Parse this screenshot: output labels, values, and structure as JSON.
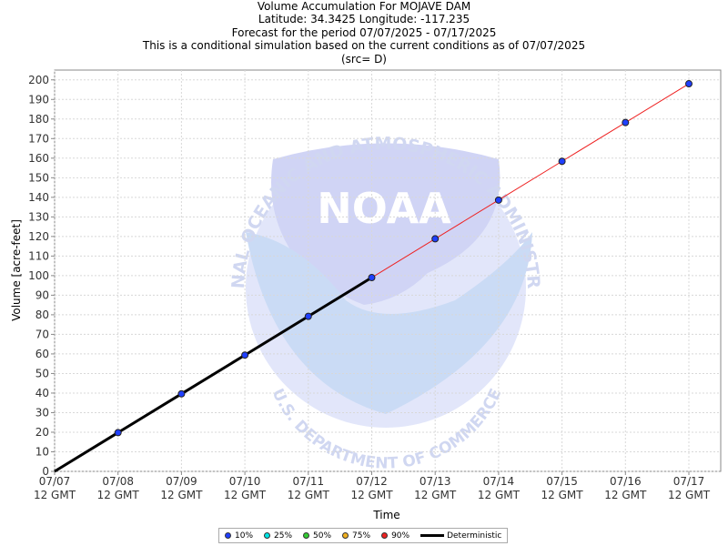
{
  "titles": {
    "line1": "Volume Accumulation For MOJAVE DAM",
    "line2": "Latitude: 34.3425 Longitude: -117.235",
    "line3": "Forecast for the period 07/07/2025 - 07/17/2025",
    "line4": "This is a conditional simulation based on the current conditions as of 07/07/2025",
    "line5": "(src= D)"
  },
  "legend": {
    "items": [
      {
        "label": "10%",
        "color": "#1f3fff"
      },
      {
        "label": "25%",
        "color": "#00e5e5"
      },
      {
        "label": "50%",
        "color": "#33cc33"
      },
      {
        "label": "75%",
        "color": "#f0b020"
      },
      {
        "label": "90%",
        "color": "#ee2222"
      }
    ],
    "deterministic_label": "Deterministic"
  },
  "watermark": {
    "logo_text": "NOAA",
    "ring_top": "NATIONAL OCEANIC AND ATMOSPHERIC ADMINISTRATION",
    "ring_bottom": "U.S. DEPARTMENT OF COMMERCE"
  },
  "chart_data": {
    "type": "line",
    "xlabel": "Time",
    "ylabel": "Volume [acre-feet]",
    "ylim": [
      0,
      205
    ],
    "yticks": [
      0,
      10,
      20,
      30,
      40,
      50,
      60,
      70,
      80,
      90,
      100,
      110,
      120,
      130,
      140,
      150,
      160,
      170,
      180,
      190,
      200
    ],
    "x_tick_labels": [
      [
        "07/07",
        "12 GMT"
      ],
      [
        "07/08",
        "12 GMT"
      ],
      [
        "07/09",
        "12 GMT"
      ],
      [
        "07/10",
        "12 GMT"
      ],
      [
        "07/11",
        "12 GMT"
      ],
      [
        "07/12",
        "12 GMT"
      ],
      [
        "07/13",
        "12 GMT"
      ],
      [
        "07/14",
        "12 GMT"
      ],
      [
        "07/15",
        "12 GMT"
      ],
      [
        "07/16",
        "12 GMT"
      ],
      [
        "07/17",
        "12 GMT"
      ]
    ],
    "grid": true,
    "series": [
      {
        "name": "Deterministic",
        "color": "#000000",
        "x": [
          0,
          1,
          2,
          3,
          4,
          5
        ],
        "values": [
          0,
          19.8,
          39.6,
          59.4,
          79.2,
          99
        ]
      },
      {
        "name": "10%",
        "color": "#1f3fff",
        "x": [
          1,
          2,
          3,
          4,
          5,
          6,
          7,
          8,
          9,
          10
        ],
        "values": [
          19.8,
          39.6,
          59.4,
          79.2,
          99,
          118.8,
          138.6,
          158.4,
          178.2,
          198
        ]
      },
      {
        "color": "#ee2222",
        "x": [
          5,
          6,
          7,
          8,
          9,
          10
        ],
        "values": [
          99,
          118.8,
          138.6,
          158.4,
          178.2,
          198
        ]
      }
    ]
  }
}
